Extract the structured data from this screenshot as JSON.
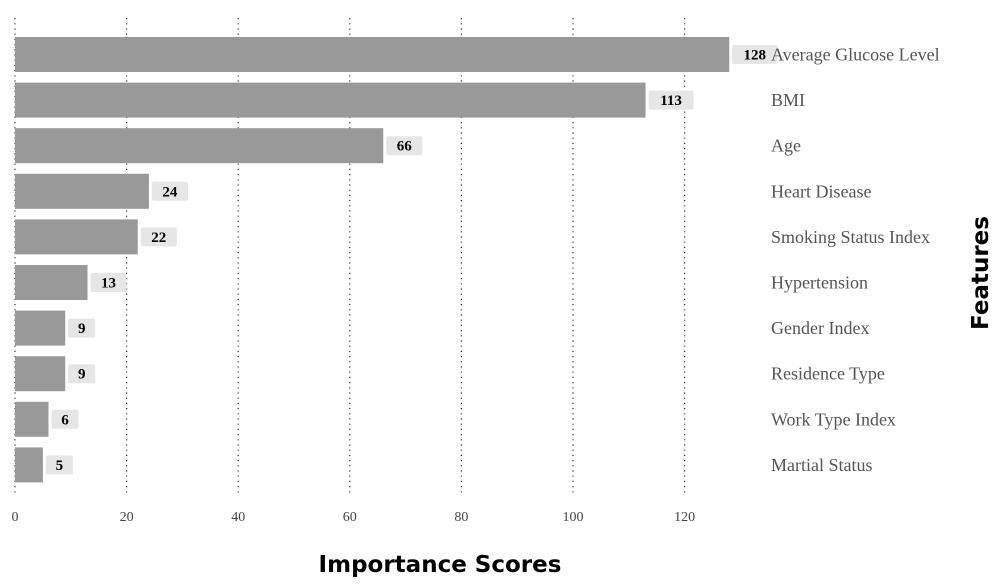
{
  "chart_data": {
    "type": "bar",
    "orientation": "horizontal",
    "categories": [
      "Average Glucose Level",
      "BMI",
      "Age",
      "Heart Disease",
      "Smoking Status Index",
      "Hypertension",
      "Gender Index",
      "Residence Type",
      "Work Type Index",
      "Martial Status"
    ],
    "values": [
      128,
      113,
      66,
      24,
      22,
      13,
      9,
      9,
      6,
      5
    ],
    "xlabel": "Importance Scores",
    "ylabel": "Features",
    "xticks": [
      0,
      20,
      40,
      60,
      80,
      100,
      120
    ],
    "xlim": [
      0,
      128
    ],
    "grid": "vertical dotted",
    "bar_color": "#999999",
    "label_box_color": "#e6e6e6",
    "category_labels_side": "right",
    "ylabel_side": "right"
  }
}
